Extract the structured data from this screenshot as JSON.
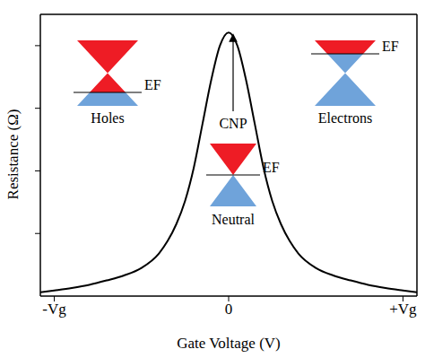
{
  "chart_data": {
    "type": "line",
    "x_label": "Gate Voltage (V)",
    "y_label": "Resistance (Ω)",
    "x": [
      -1.08,
      -1.0,
      -0.9,
      -0.8,
      -0.7,
      -0.6,
      -0.5,
      -0.4,
      -0.35,
      -0.3,
      -0.25,
      -0.2,
      -0.15,
      -0.1,
      -0.05,
      0,
      0.05,
      0.1,
      0.15,
      0.2,
      0.25,
      0.3,
      0.35,
      0.4,
      0.5,
      0.6,
      0.7,
      0.8,
      0.9,
      1.0,
      1.08
    ],
    "values": [
      0.06,
      0.09,
      0.13,
      0.18,
      0.25,
      0.33,
      0.45,
      0.68,
      0.88,
      1.15,
      1.52,
      2.05,
      2.75,
      3.45,
      4.0,
      4.21,
      4.0,
      3.45,
      2.75,
      2.05,
      1.52,
      1.15,
      0.88,
      0.68,
      0.45,
      0.33,
      0.25,
      0.18,
      0.13,
      0.09,
      0.06
    ],
    "color": "#000000",
    "xlim": [
      -1.08,
      1.08
    ],
    "xticks": [
      {
        "value": -1,
        "label": "-Vg"
      },
      0,
      {
        "value": 1,
        "label": "+Vg"
      }
    ],
    "ylim": [
      0,
      4.5
    ],
    "yticks": [
      1,
      2,
      3,
      4
    ],
    "tick_labels": "x",
    "grid": false,
    "annotations": {
      "peak": "CNP",
      "holes": "Holes",
      "neutral": "Neutral",
      "electrons": "Electrons",
      "fermi_level": "EF"
    }
  }
}
